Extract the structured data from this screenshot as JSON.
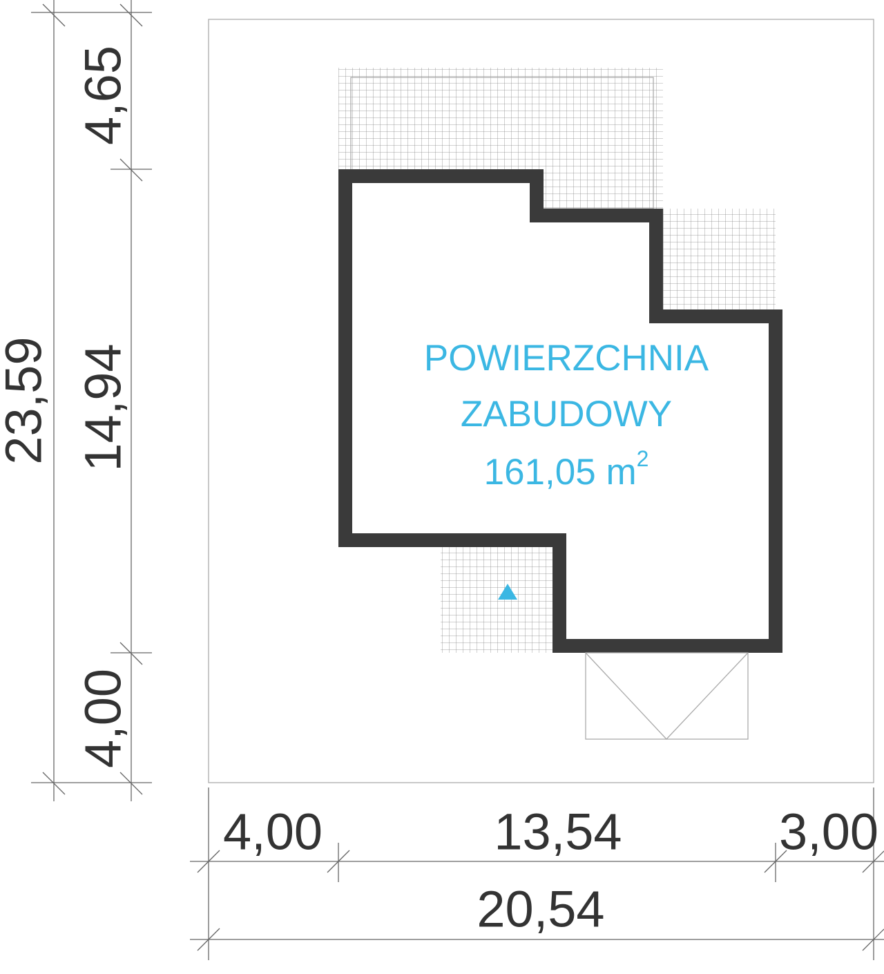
{
  "dimensions": {
    "vertical": {
      "total": "23,59",
      "segments": [
        "4,65",
        "14,94",
        "4,00"
      ]
    },
    "horizontal": {
      "total": "20,54",
      "segments": [
        "4,00",
        "13,54",
        "3,00"
      ]
    }
  },
  "area_label": {
    "lines": [
      "POWIERZCHNIA",
      "ZABUDOWY"
    ],
    "value": "161,05 m",
    "superscript": "2"
  }
}
